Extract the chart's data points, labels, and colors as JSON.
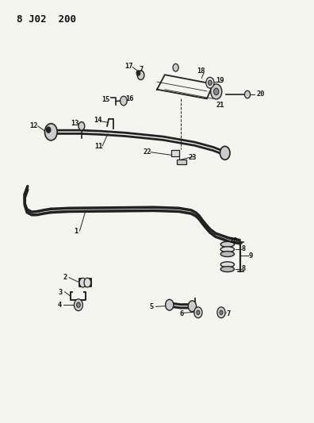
{
  "title": "8 J02  200",
  "background_color": "#f5f5f0",
  "line_color": "#222222",
  "text_color": "#111111",
  "fig_width": 3.96,
  "fig_height": 5.33,
  "dpi": 100
}
